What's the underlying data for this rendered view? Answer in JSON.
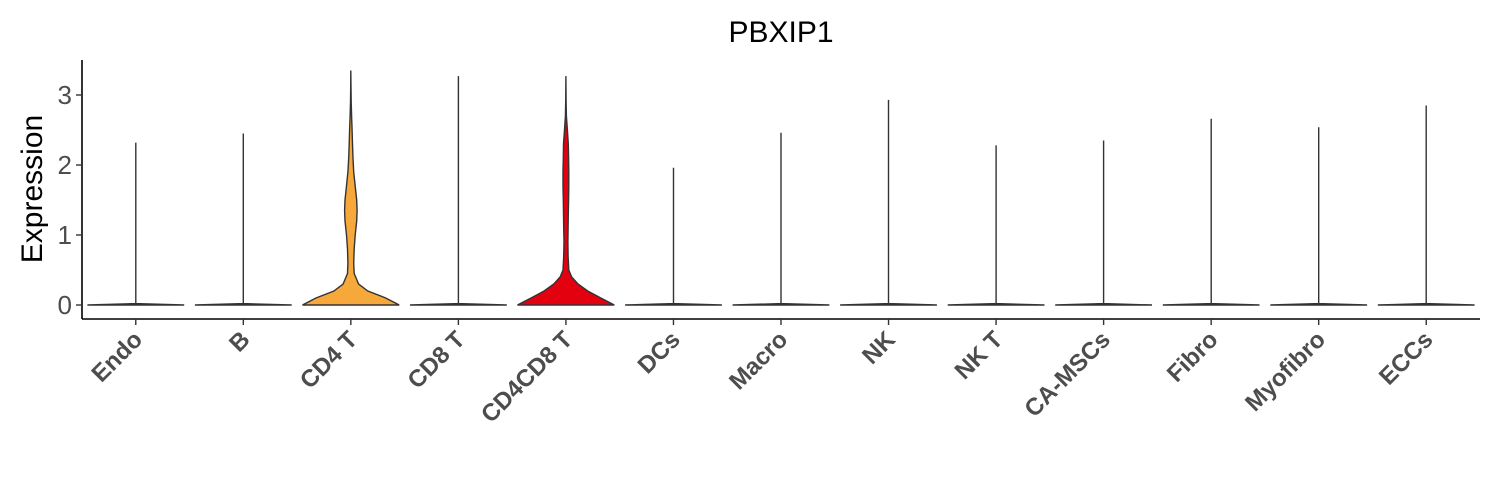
{
  "chart_data": {
    "type": "violin",
    "title": "PBXIP1",
    "xlabel": "",
    "ylabel": "Expression",
    "ylim": [
      -0.2,
      3.5
    ],
    "yticks": [
      0,
      1,
      2,
      3
    ],
    "grid": false,
    "legend": "none",
    "categories": [
      "Endo",
      "B",
      "CD4 T",
      "CD8 T",
      "CD4CD8 T",
      "DCs",
      "Macro",
      "NK",
      "NK T",
      "CA-MSCs",
      "Fibro",
      "Myofibro",
      "ECCs"
    ],
    "series": [
      {
        "category": "Endo",
        "max": 2.32,
        "color": "#ffffff",
        "profile": [
          [
            0,
            1.0
          ],
          [
            0.02,
            0.0
          ],
          [
            2.32,
            0.0
          ]
        ]
      },
      {
        "category": "B",
        "max": 2.45,
        "color": "#ffffff",
        "profile": [
          [
            0,
            1.0
          ],
          [
            0.02,
            0.0
          ],
          [
            2.45,
            0.0
          ]
        ]
      },
      {
        "category": "CD4 T",
        "max": 3.35,
        "color": "#F6A93A",
        "profile": [
          [
            0,
            1.0
          ],
          [
            0.1,
            0.72
          ],
          [
            0.2,
            0.35
          ],
          [
            0.3,
            0.16
          ],
          [
            0.45,
            0.07
          ],
          [
            0.6,
            0.06
          ],
          [
            0.8,
            0.07
          ],
          [
            1.0,
            0.09
          ],
          [
            1.2,
            0.12
          ],
          [
            1.35,
            0.13
          ],
          [
            1.5,
            0.12
          ],
          [
            1.7,
            0.09
          ],
          [
            1.9,
            0.06
          ],
          [
            2.1,
            0.045
          ],
          [
            2.3,
            0.035
          ],
          [
            2.5,
            0.025
          ],
          [
            2.7,
            0.015
          ],
          [
            2.9,
            0.008
          ],
          [
            3.1,
            0.003
          ],
          [
            3.35,
            0.0
          ]
        ]
      },
      {
        "category": "CD8 T",
        "max": 3.27,
        "color": "#ffffff",
        "profile": [
          [
            0,
            1.0
          ],
          [
            0.02,
            0.0
          ],
          [
            3.27,
            0.0
          ]
        ]
      },
      {
        "category": "CD4CD8 T",
        "max": 3.27,
        "color": "#E3000F",
        "profile": [
          [
            0,
            1.0
          ],
          [
            0.1,
            0.72
          ],
          [
            0.2,
            0.45
          ],
          [
            0.3,
            0.25
          ],
          [
            0.4,
            0.12
          ],
          [
            0.5,
            0.06
          ],
          [
            0.7,
            0.045
          ],
          [
            0.9,
            0.04
          ],
          [
            1.1,
            0.045
          ],
          [
            1.3,
            0.05
          ],
          [
            1.5,
            0.055
          ],
          [
            1.7,
            0.06
          ],
          [
            1.9,
            0.06
          ],
          [
            2.1,
            0.055
          ],
          [
            2.3,
            0.05
          ],
          [
            2.5,
            0.03
          ],
          [
            2.7,
            0.01
          ],
          [
            2.9,
            0.004
          ],
          [
            3.27,
            0.0
          ]
        ]
      },
      {
        "category": "DCs",
        "max": 1.96,
        "color": "#ffffff",
        "profile": [
          [
            0,
            1.0
          ],
          [
            0.02,
            0.0
          ],
          [
            1.96,
            0.0
          ]
        ]
      },
      {
        "category": "Macro",
        "max": 2.46,
        "color": "#ffffff",
        "profile": [
          [
            0,
            1.0
          ],
          [
            0.02,
            0.0
          ],
          [
            2.46,
            0.0
          ]
        ]
      },
      {
        "category": "NK",
        "max": 2.93,
        "color": "#ffffff",
        "profile": [
          [
            0,
            1.0
          ],
          [
            0.02,
            0.0
          ],
          [
            2.93,
            0.0
          ]
        ]
      },
      {
        "category": "NK T",
        "max": 2.28,
        "color": "#ffffff",
        "profile": [
          [
            0,
            1.0
          ],
          [
            0.02,
            0.0
          ],
          [
            2.28,
            0.0
          ]
        ]
      },
      {
        "category": "CA-MSCs",
        "max": 2.35,
        "color": "#ffffff",
        "profile": [
          [
            0,
            1.0
          ],
          [
            0.02,
            0.0
          ],
          [
            2.35,
            0.0
          ]
        ]
      },
      {
        "category": "Fibro",
        "max": 2.66,
        "color": "#ffffff",
        "profile": [
          [
            0,
            1.0
          ],
          [
            0.02,
            0.0
          ],
          [
            2.66,
            0.0
          ]
        ]
      },
      {
        "category": "Myofibro",
        "max": 2.54,
        "color": "#ffffff",
        "profile": [
          [
            0,
            1.0
          ],
          [
            0.02,
            0.0
          ],
          [
            2.54,
            0.0
          ]
        ]
      },
      {
        "category": "ECCs",
        "max": 2.85,
        "color": "#ffffff",
        "profile": [
          [
            0,
            1.0
          ],
          [
            0.02,
            0.0
          ],
          [
            2.85,
            0.0
          ]
        ]
      }
    ]
  }
}
